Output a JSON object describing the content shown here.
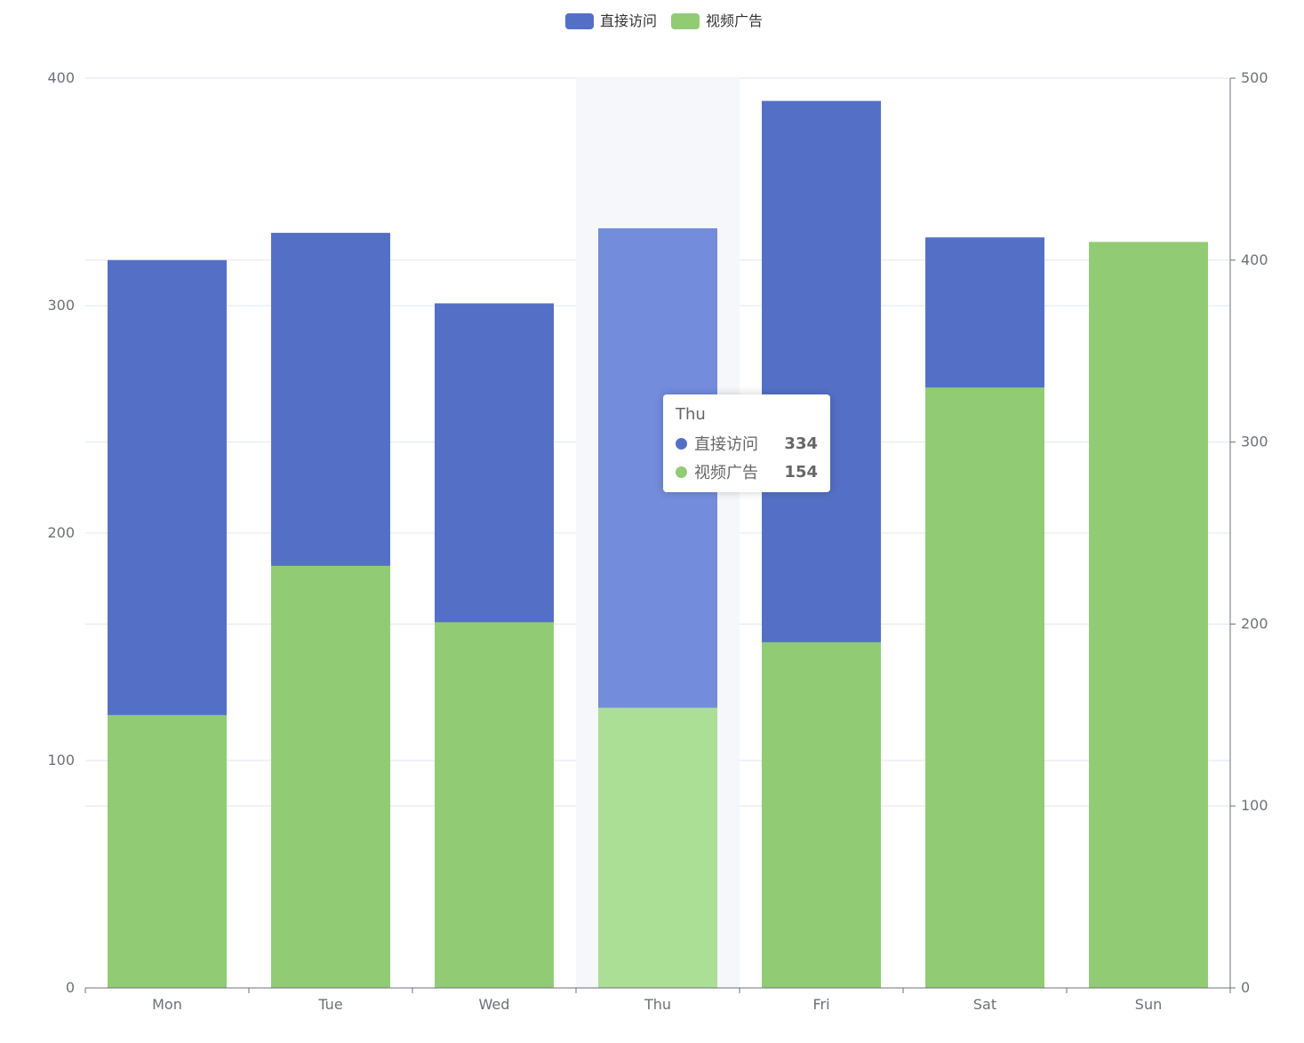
{
  "chart_data": {
    "type": "bar",
    "stacked": true,
    "categories": [
      "Mon",
      "Tue",
      "Wed",
      "Thu",
      "Fri",
      "Sat",
      "Sun"
    ],
    "series": [
      {
        "name": "视频广告",
        "color": "#91cc75",
        "highlight_color": "#abdf95",
        "values": [
          150,
          232,
          201,
          154,
          190,
          330,
          410
        ],
        "y_axis": "right"
      },
      {
        "name": "直接访问",
        "color": "#5470c6",
        "highlight_color": "#738cdc",
        "values": [
          320,
          332,
          301,
          334,
          390,
          330,
          320
        ],
        "y_axis": "left"
      }
    ],
    "y_left": {
      "min": 0,
      "max": 400,
      "ticks": [
        "0",
        "100",
        "200",
        "300",
        "400"
      ]
    },
    "y_right": {
      "min": 0,
      "max": 500,
      "ticks": [
        "0",
        "100",
        "200",
        "300",
        "400",
        "500"
      ]
    },
    "legend": {
      "position": "top-center",
      "items": [
        "直接访问",
        "视频广告"
      ]
    },
    "highlighted_category": "Thu"
  },
  "tooltip": {
    "title": "Thu",
    "rows": [
      {
        "name": "直接访问",
        "value": "334",
        "color": "#5470c6"
      },
      {
        "name": "视频广告",
        "value": "154",
        "color": "#91cc75"
      }
    ]
  }
}
